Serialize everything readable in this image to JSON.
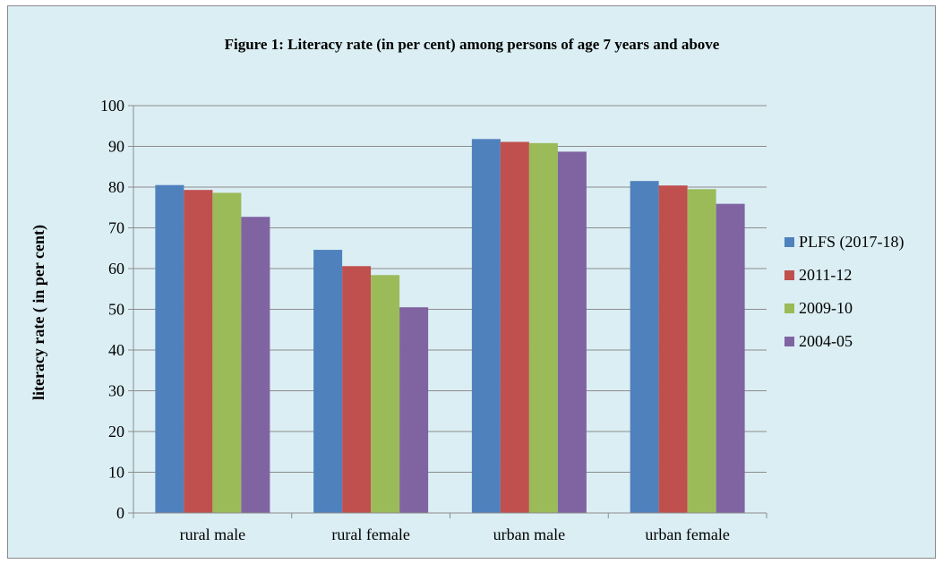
{
  "chart_data": {
    "type": "bar",
    "title": "Figure 1: Literacy rate (in per cent) among persons of age 7 years and above",
    "xlabel": "",
    "ylabel": "literacy rate ( in per cent)",
    "categories": [
      "rural male",
      "rural female",
      "urban male",
      "urban female"
    ],
    "series": [
      {
        "name": "PLFS (2017-18)",
        "color": "#4f81bd",
        "values": [
          80.5,
          64.6,
          91.8,
          81.5
        ]
      },
      {
        "name": "2011-12",
        "color": "#c0504d",
        "values": [
          79.3,
          60.6,
          91.1,
          80.4
        ]
      },
      {
        "name": "2009-10",
        "color": "#9bbb59",
        "values": [
          78.6,
          58.4,
          90.8,
          79.5
        ]
      },
      {
        "name": "2004-05",
        "color": "#8064a2",
        "values": [
          72.7,
          50.5,
          88.7,
          75.9
        ]
      }
    ],
    "ylim": [
      0,
      100
    ],
    "yticks": [
      0,
      10,
      20,
      30,
      40,
      50,
      60,
      70,
      80,
      90,
      100
    ],
    "grid": true,
    "legend_position": "right"
  }
}
